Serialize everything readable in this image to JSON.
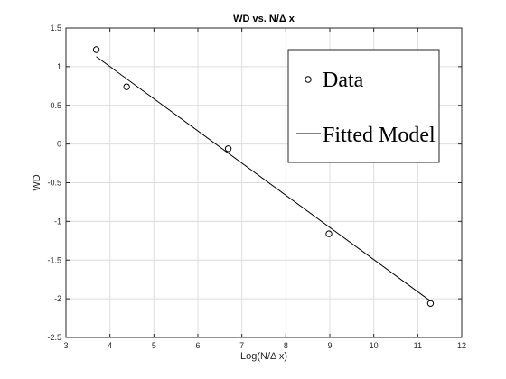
{
  "chart_data": {
    "type": "scatter",
    "title": "WD vs. N/Δ x",
    "xlabel": "Log(N/Δ x)",
    "ylabel": "WD",
    "xlim": [
      3,
      12
    ],
    "ylim": [
      -2.5,
      1.5
    ],
    "xticks": [
      3,
      4,
      5,
      6,
      7,
      8,
      9,
      10,
      11,
      12
    ],
    "yticks": [
      -2.5,
      -2,
      -1.5,
      -1,
      -0.5,
      0,
      0.5,
      1,
      1.5
    ],
    "xtick_labels": [
      "3",
      "4",
      "5",
      "6",
      "7",
      "8",
      "9",
      "10",
      "11",
      "12"
    ],
    "ytick_labels": [
      "-2.5",
      "-2",
      "-1.5",
      "-1",
      "-0.5",
      "0",
      "0.5",
      "1",
      "1.5"
    ],
    "grid": true,
    "legend_position": "top-right",
    "series": [
      {
        "name": "Data",
        "style": "marker-circle",
        "x": [
          3.69,
          4.38,
          6.69,
          8.98,
          11.29
        ],
        "y": [
          1.22,
          0.74,
          -0.06,
          -1.16,
          -2.06
        ]
      },
      {
        "name": "Fitted Model",
        "style": "line",
        "x": [
          3.69,
          11.29
        ],
        "y": [
          1.13,
          -2.03
        ]
      }
    ]
  },
  "colors": {
    "background": "#ffffff",
    "axes": "#262626",
    "grid": "#dcdcdc",
    "data": "#000000"
  }
}
